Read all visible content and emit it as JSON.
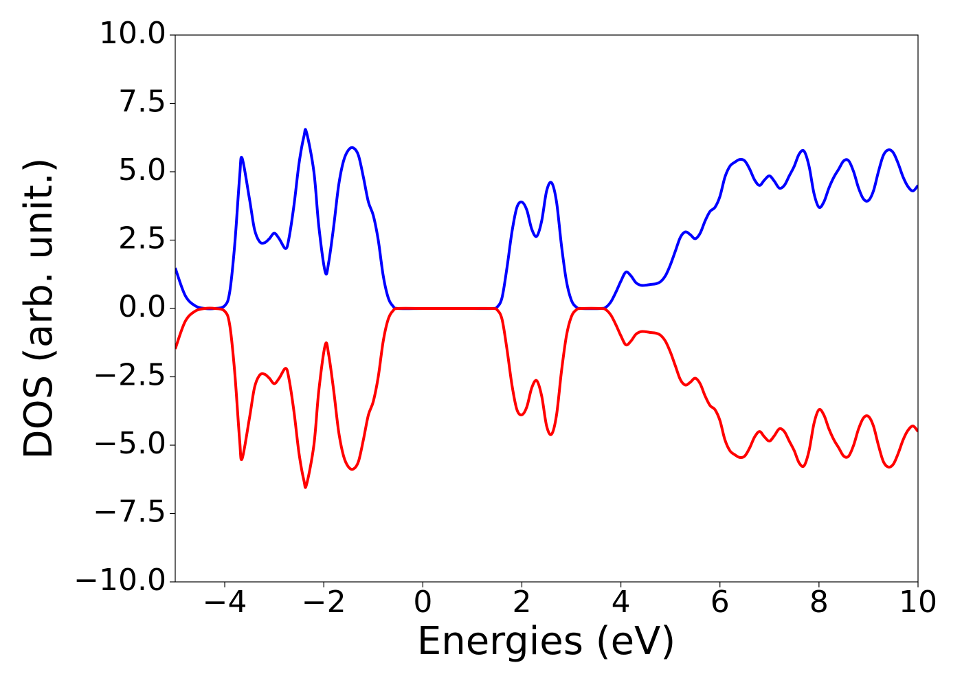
{
  "chart_data": {
    "type": "line",
    "xlabel": "Energies (eV)",
    "ylabel": "DOS (arb. unit.)",
    "xlim": [
      -5,
      10
    ],
    "ylim": [
      -10,
      10
    ],
    "xticks": [
      {
        "value": -4,
        "label": "−4"
      },
      {
        "value": -2,
        "label": "−2"
      },
      0,
      2,
      4,
      6,
      8,
      10
    ],
    "yticks": [
      {
        "value": -10,
        "label": "−10.0"
      },
      {
        "value": -7.5,
        "label": "−7.5"
      },
      {
        "value": -5,
        "label": "−5.0"
      },
      {
        "value": -2.5,
        "label": "−2.5"
      },
      {
        "value": 0,
        "label": "0.0"
      },
      {
        "value": 2.5,
        "label": "2.5"
      },
      {
        "value": 5,
        "label": "5.0"
      },
      {
        "value": 7.5,
        "label": "7.5"
      },
      {
        "value": 10,
        "label": "10.0"
      }
    ],
    "x": [
      -5,
      -4.8,
      -4.6,
      -4.4,
      -4.2,
      -4.0,
      -3.9,
      -3.8,
      -3.7,
      -3.65,
      -3.5,
      -3.4,
      -3.3,
      -3.2,
      -3.1,
      -3.0,
      -2.9,
      -2.77,
      -2.7,
      -2.6,
      -2.5,
      -2.4,
      -2.35,
      -2.2,
      -2.1,
      -1.97,
      -1.9,
      -1.8,
      -1.7,
      -1.6,
      -1.5,
      -1.4,
      -1.3,
      -1.2,
      -1.1,
      -1.0,
      -0.9,
      -0.8,
      -0.7,
      -0.6,
      -0.5,
      0,
      0.5,
      1.0,
      1.4,
      1.5,
      1.6,
      1.7,
      1.8,
      1.9,
      2.0,
      2.1,
      2.2,
      2.3,
      2.4,
      2.5,
      2.6,
      2.7,
      2.8,
      2.9,
      3.0,
      3.1,
      3.2,
      3.6,
      3.7,
      3.8,
      3.9,
      4.0,
      4.1,
      4.2,
      4.3,
      4.4,
      4.5,
      4.6,
      4.7,
      4.8,
      4.9,
      5.0,
      5.1,
      5.2,
      5.3,
      5.4,
      5.5,
      5.6,
      5.7,
      5.8,
      5.9,
      6.0,
      6.1,
      6.2,
      6.3,
      6.4,
      6.5,
      6.6,
      6.7,
      6.8,
      6.9,
      7.0,
      7.1,
      7.2,
      7.3,
      7.4,
      7.5,
      7.6,
      7.7,
      7.8,
      7.9,
      8.0,
      8.1,
      8.2,
      8.3,
      8.4,
      8.5,
      8.6,
      8.7,
      8.8,
      8.9,
      9.0,
      9.1,
      9.2,
      9.3,
      9.4,
      9.5,
      9.6,
      9.7,
      9.8,
      9.9,
      10.0
    ],
    "series": [
      {
        "color": "#0000ff",
        "values": [
          1.48,
          0.48,
          0.1,
          0,
          0,
          0.1,
          0.6,
          2.3,
          4.8,
          5.5,
          4.0,
          2.9,
          2.45,
          2.4,
          2.55,
          2.75,
          2.55,
          2.19,
          2.6,
          3.8,
          5.3,
          6.3,
          6.45,
          5.0,
          3.0,
          1.33,
          1.7,
          3.0,
          4.5,
          5.4,
          5.8,
          5.87,
          5.6,
          4.8,
          3.9,
          3.4,
          2.5,
          1.2,
          0.4,
          0.08,
          0,
          0,
          0,
          0,
          0,
          0.05,
          0.4,
          1.5,
          2.8,
          3.7,
          3.89,
          3.6,
          2.9,
          2.64,
          3.2,
          4.3,
          4.6,
          3.9,
          2.3,
          1.0,
          0.3,
          0.05,
          0,
          0,
          0.05,
          0.25,
          0.6,
          1.0,
          1.33,
          1.2,
          0.95,
          0.85,
          0.85,
          0.88,
          0.9,
          0.98,
          1.2,
          1.6,
          2.1,
          2.6,
          2.8,
          2.7,
          2.55,
          2.75,
          3.2,
          3.55,
          3.7,
          4.1,
          4.8,
          5.2,
          5.35,
          5.45,
          5.4,
          5.1,
          4.7,
          4.5,
          4.7,
          4.85,
          4.65,
          4.4,
          4.5,
          4.85,
          5.2,
          5.65,
          5.75,
          5.2,
          4.2,
          3.7,
          3.9,
          4.4,
          4.8,
          5.1,
          5.4,
          5.4,
          5.0,
          4.4,
          4.0,
          3.95,
          4.3,
          5.0,
          5.6,
          5.8,
          5.7,
          5.3,
          4.8,
          4.45,
          4.3,
          4.5
        ]
      },
      {
        "color": "#ff0000",
        "values": [
          -1.48,
          -0.48,
          -0.1,
          0,
          0,
          -0.1,
          -0.6,
          -2.3,
          -4.8,
          -5.5,
          -4.0,
          -2.9,
          -2.45,
          -2.4,
          -2.55,
          -2.75,
          -2.55,
          -2.19,
          -2.6,
          -3.8,
          -5.3,
          -6.3,
          -6.45,
          -5.0,
          -3.0,
          -1.33,
          -1.7,
          -3.0,
          -4.5,
          -5.4,
          -5.8,
          -5.87,
          -5.6,
          -4.8,
          -3.9,
          -3.4,
          -2.5,
          -1.2,
          -0.4,
          -0.08,
          0,
          0,
          0,
          0,
          0,
          -0.05,
          -0.4,
          -1.5,
          -2.8,
          -3.7,
          -3.89,
          -3.6,
          -2.9,
          -2.64,
          -3.2,
          -4.3,
          -4.6,
          -3.9,
          -2.3,
          -1.0,
          -0.3,
          -0.05,
          0,
          0,
          -0.05,
          -0.25,
          -0.6,
          -1.0,
          -1.33,
          -1.2,
          -0.95,
          -0.85,
          -0.85,
          -0.88,
          -0.9,
          -0.98,
          -1.2,
          -1.6,
          -2.1,
          -2.6,
          -2.8,
          -2.7,
          -2.55,
          -2.75,
          -3.2,
          -3.55,
          -3.7,
          -4.1,
          -4.8,
          -5.2,
          -5.35,
          -5.45,
          -5.4,
          -5.1,
          -4.7,
          -4.5,
          -4.7,
          -4.85,
          -4.65,
          -4.4,
          -4.5,
          -4.85,
          -5.2,
          -5.65,
          -5.75,
          -5.2,
          -4.2,
          -3.7,
          -3.9,
          -4.4,
          -4.8,
          -5.1,
          -5.4,
          -5.4,
          -5.0,
          -4.4,
          -4.0,
          -3.95,
          -4.3,
          -5.0,
          -5.6,
          -5.8,
          -5.7,
          -5.3,
          -4.8,
          -4.45,
          -4.3,
          -4.5
        ]
      }
    ]
  }
}
